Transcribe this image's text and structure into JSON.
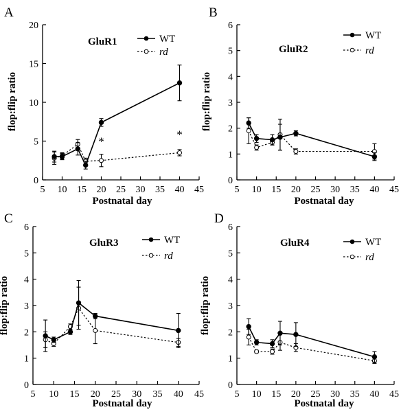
{
  "chart_data": [
    {
      "panel": "A",
      "type": "line",
      "title": "GluR1",
      "xlabel": "Postnatal   day",
      "ylabel": "flop:flip ratio",
      "xlim": [
        5,
        45
      ],
      "ylim": [
        0,
        20
      ],
      "xticks": [
        5,
        10,
        15,
        20,
        25,
        30,
        35,
        40,
        45
      ],
      "yticks": [
        0,
        5,
        10,
        15,
        20
      ],
      "x": [
        8,
        10,
        14,
        16,
        20,
        40
      ],
      "series": [
        {
          "name": "WT",
          "style": "solid",
          "marker": "filled",
          "values": [
            3.0,
            3.0,
            4.0,
            1.9,
            7.4,
            12.5
          ],
          "errors": [
            0.7,
            0.4,
            0.8,
            0.5,
            0.5,
            2.3
          ]
        },
        {
          "name": "rd",
          "style": "dashed",
          "marker": "open",
          "values": [
            2.8,
            3.1,
            4.6,
            2.4,
            2.5,
            3.5
          ],
          "errors": [
            0.8,
            0.4,
            0.6,
            0.4,
            0.8,
            0.4
          ]
        }
      ],
      "annotations": [
        {
          "text": "*",
          "x": 20,
          "y": 5.0
        },
        {
          "text": "*",
          "x": 40,
          "y": 5.9
        }
      ]
    },
    {
      "panel": "B",
      "type": "line",
      "title": "GluR2",
      "xlabel": "Postnatal   day",
      "ylabel": "flop:flip ratio",
      "xlim": [
        5,
        45
      ],
      "ylim": [
        0,
        6
      ],
      "xticks": [
        5,
        10,
        15,
        20,
        25,
        30,
        35,
        40,
        45
      ],
      "yticks": [
        0,
        1,
        2,
        3,
        4,
        5,
        6
      ],
      "x": [
        8,
        10,
        14,
        16,
        20,
        40
      ],
      "series": [
        {
          "name": "WT",
          "style": "solid",
          "marker": "filled",
          "values": [
            2.2,
            1.6,
            1.55,
            1.65,
            1.8,
            0.9
          ],
          "errors": [
            0.2,
            0.15,
            0.2,
            0.5,
            0.1,
            0.15
          ]
        },
        {
          "name": "rd",
          "style": "dashed",
          "marker": "open",
          "values": [
            1.9,
            1.25,
            1.45,
            1.75,
            1.1,
            1.1
          ],
          "errors": [
            0.5,
            0.1,
            0.1,
            0.6,
            0.1,
            0.3
          ]
        }
      ],
      "annotations": []
    },
    {
      "panel": "C",
      "type": "line",
      "title": "GluR3",
      "xlabel": "Postnatal   day",
      "ylabel": "flop:flip ratio",
      "xlim": [
        5,
        45
      ],
      "ylim": [
        0,
        6
      ],
      "xticks": [
        5,
        10,
        15,
        20,
        25,
        30,
        35,
        40,
        45
      ],
      "yticks": [
        0,
        1,
        2,
        3,
        4,
        5,
        6
      ],
      "x": [
        8,
        10,
        14,
        16,
        20,
        40
      ],
      "series": [
        {
          "name": "WT",
          "style": "solid",
          "marker": "filled",
          "values": [
            1.85,
            1.7,
            2.0,
            3.1,
            2.6,
            2.05
          ],
          "errors": [
            0.6,
            0.1,
            0.1,
            0.85,
            0.1,
            0.65
          ]
        },
        {
          "name": "rd",
          "style": "dashed",
          "marker": "open",
          "values": [
            1.7,
            1.55,
            2.2,
            2.9,
            2.05,
            1.6
          ],
          "errors": [
            0.3,
            0.1,
            0.1,
            0.8,
            0.5,
            0.15
          ]
        }
      ],
      "annotations": []
    },
    {
      "panel": "D",
      "type": "line",
      "title": "GluR4",
      "xlabel": "Postnatal   day",
      "ylabel": "flop:flip ratio",
      "xlim": [
        5,
        45
      ],
      "ylim": [
        0,
        6
      ],
      "xticks": [
        5,
        10,
        15,
        20,
        25,
        30,
        35,
        40,
        45
      ],
      "yticks": [
        0,
        1,
        2,
        3,
        4,
        5,
        6
      ],
      "x": [
        8,
        10,
        14,
        16,
        20,
        40
      ],
      "series": [
        {
          "name": "WT",
          "style": "solid",
          "marker": "filled",
          "values": [
            2.2,
            1.6,
            1.55,
            1.95,
            1.9,
            1.05
          ],
          "errors": [
            0.3,
            0.1,
            0.15,
            0.45,
            0.45,
            0.2
          ]
        },
        {
          "name": "rd",
          "style": "dashed",
          "marker": "open",
          "values": [
            1.8,
            1.25,
            1.25,
            1.6,
            1.4,
            0.9
          ],
          "errors": [
            0.3,
            0.05,
            0.1,
            0.3,
            0.15,
            0.1
          ]
        }
      ],
      "annotations": []
    }
  ]
}
